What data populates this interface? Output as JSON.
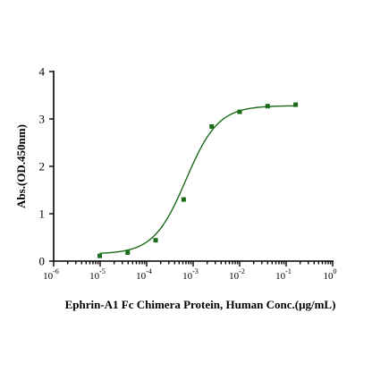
{
  "chart_data": {
    "type": "scatter",
    "title": "",
    "xlabel": "Ephrin-A1 Fc Chimera Protein, Human  Conc.(μg/mL)",
    "ylabel": "Abs.(OD.450nm)",
    "x_scale": "log",
    "xlim": [
      1e-06,
      1
    ],
    "ylim": [
      0,
      4
    ],
    "x_ticks": [
      {
        "value": 1e-06,
        "base": "10",
        "exp": "-6"
      },
      {
        "value": 1e-05,
        "base": "10",
        "exp": "-5"
      },
      {
        "value": 0.0001,
        "base": "10",
        "exp": "-4"
      },
      {
        "value": 0.001,
        "base": "10",
        "exp": "-3"
      },
      {
        "value": 0.01,
        "base": "10",
        "exp": "-2"
      },
      {
        "value": 0.1,
        "base": "10",
        "exp": "-1"
      },
      {
        "value": 1,
        "base": "10",
        "exp": "0"
      }
    ],
    "y_ticks": [
      {
        "value": 0,
        "label": "0"
      },
      {
        "value": 1,
        "label": "1"
      },
      {
        "value": 2,
        "label": "2"
      },
      {
        "value": 3,
        "label": "3"
      },
      {
        "value": 4,
        "label": "4"
      }
    ],
    "grid": false,
    "series": [
      {
        "color": "#1a6b1a",
        "marker": "square",
        "points": [
          {
            "x": 9.8e-06,
            "y": 0.11
          },
          {
            "x": 3.9e-05,
            "y": 0.18
          },
          {
            "x": 0.000156,
            "y": 0.44
          },
          {
            "x": 0.000625,
            "y": 1.3
          },
          {
            "x": 0.0025,
            "y": 2.84
          },
          {
            "x": 0.01,
            "y": 3.15
          },
          {
            "x": 0.04,
            "y": 3.27
          },
          {
            "x": 0.16,
            "y": 3.3
          }
        ],
        "fit": {
          "model": "4PL",
          "bottom": 0.15,
          "top": 3.28,
          "ec50": 0.0007,
          "hill": 1.25
        }
      }
    ]
  }
}
